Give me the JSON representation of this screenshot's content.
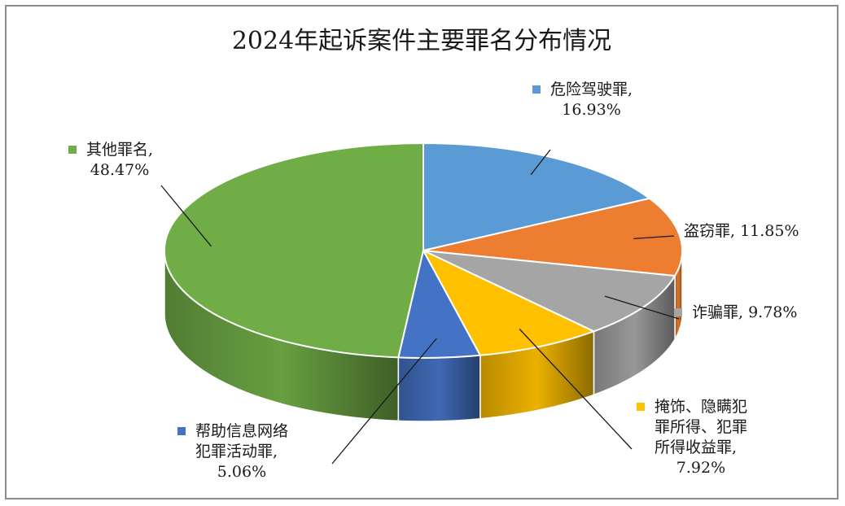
{
  "chart_data": {
    "type": "pie",
    "variant": "3d",
    "title": "2024年起诉案件主要罪名分布情况",
    "slices": [
      {
        "name": "危险驾驶罪",
        "value": 16.93,
        "value_label": "16.93%",
        "color": "#5b9bd5",
        "label_lines": [
          "危险驾驶罪,",
          "16.93%"
        ]
      },
      {
        "name": "盗窃罪",
        "value": 11.85,
        "value_label": "11.85%",
        "color": "#ed7d31",
        "label_lines": [
          "盗窃罪, 11.85%"
        ]
      },
      {
        "name": "诈骗罪",
        "value": 9.78,
        "value_label": "9.78%",
        "color": "#a5a5a5",
        "label_lines": [
          "诈骗罪, 9.78%"
        ]
      },
      {
        "name": "掩饰、隐瞒犯罪所得、犯罪所得收益罪",
        "value": 7.92,
        "value_label": "7.92%",
        "color": "#ffc000",
        "label_lines": [
          "掩饰、隐瞒犯",
          "罪所得、犯罪",
          "所得收益罪,",
          "7.92%"
        ]
      },
      {
        "name": "帮助信息网络犯罪活动罪",
        "value": 5.06,
        "value_label": "5.06%",
        "color": "#4472c4",
        "label_lines": [
          "帮助信息网络",
          "犯罪活动罪,",
          "5.06%"
        ]
      },
      {
        "name": "其他罪名",
        "value": 48.47,
        "value_label": "48.47%",
        "color": "#70ad47",
        "label_lines": [
          "其他罪名,",
          "48.47%"
        ]
      }
    ],
    "legend": "labels beside slices"
  }
}
